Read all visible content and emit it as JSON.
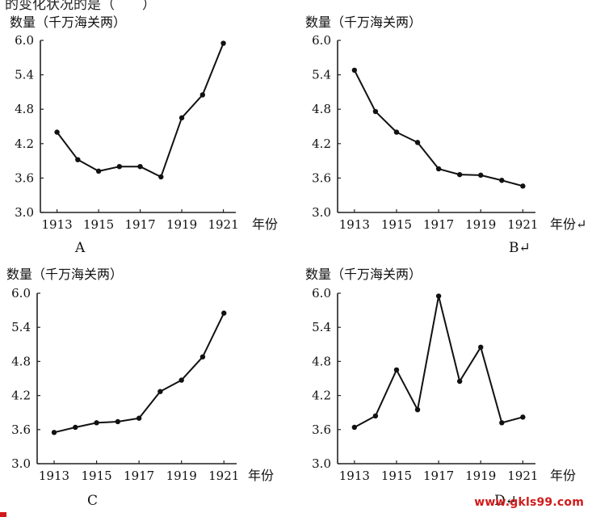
{
  "top_fragment": "的变化状况的是（　　）",
  "watermark": "www.gkls99.com",
  "chart_data": [
    {
      "type": "line",
      "panel": "A",
      "panel_suffix": "",
      "ylabel": "数量（千万海关两）",
      "xlabel": "年份",
      "x": [
        1913,
        1914,
        1915,
        1916,
        1917,
        1918,
        1919,
        1920,
        1921
      ],
      "values": [
        4.4,
        3.92,
        3.72,
        3.8,
        3.8,
        3.62,
        4.65,
        5.05,
        5.95
      ],
      "xticks": [
        "1913",
        "1915",
        "1917",
        "1919",
        "1921"
      ],
      "yticks": [
        "3.0",
        "3.6",
        "4.2",
        "4.8",
        "5.4",
        "6.0"
      ],
      "ylim": [
        3.0,
        6.0
      ],
      "xlim": [
        1912.2,
        1921.6
      ]
    },
    {
      "type": "line",
      "panel": "B",
      "panel_suffix": "↵",
      "ylabel": "数量（千万海关两）",
      "xlabel": "年份↵",
      "x": [
        1913,
        1914,
        1915,
        1916,
        1917,
        1918,
        1919,
        1920,
        1921
      ],
      "values": [
        5.48,
        4.76,
        4.4,
        4.22,
        3.76,
        3.66,
        3.65,
        3.56,
        3.46
      ],
      "xticks": [
        "1913",
        "1915",
        "1917",
        "1919",
        "1921"
      ],
      "yticks": [
        "3.0",
        "3.6",
        "4.2",
        "4.8",
        "5.4",
        "6.0"
      ],
      "ylim": [
        3.0,
        6.0
      ],
      "xlim": [
        1912.2,
        1921.6
      ]
    },
    {
      "type": "line",
      "panel": "C",
      "panel_suffix": "",
      "ylabel": "数量（千万海关两）",
      "xlabel": "年份",
      "x": [
        1913,
        1914,
        1915,
        1916,
        1917,
        1918,
        1919,
        1920,
        1921
      ],
      "values": [
        3.55,
        3.64,
        3.72,
        3.74,
        3.8,
        4.27,
        4.47,
        4.88,
        5.65
      ],
      "xticks": [
        "1913",
        "1915",
        "1917",
        "1919",
        "1921"
      ],
      "yticks": [
        "3.0",
        "3.6",
        "4.2",
        "4.8",
        "5.4",
        "6.0"
      ],
      "ylim": [
        3.0,
        6.0
      ],
      "xlim": [
        1912.2,
        1921.6
      ]
    },
    {
      "type": "line",
      "panel": "D",
      "panel_suffix": "↵",
      "ylabel": "数量（千万海关两）",
      "xlabel": "年份",
      "x": [
        1913,
        1914,
        1915,
        1916,
        1917,
        1918,
        1919,
        1920,
        1921
      ],
      "values": [
        3.64,
        3.84,
        4.65,
        3.95,
        5.95,
        4.45,
        5.05,
        3.72,
        3.82
      ],
      "xticks": [
        "1913",
        "1915",
        "1917",
        "1919",
        "1921"
      ],
      "yticks": [
        "3.0",
        "3.6",
        "4.2",
        "4.8",
        "5.4",
        "6.0"
      ],
      "ylim": [
        3.0,
        6.0
      ],
      "xlim": [
        1912.2,
        1921.6
      ]
    }
  ]
}
